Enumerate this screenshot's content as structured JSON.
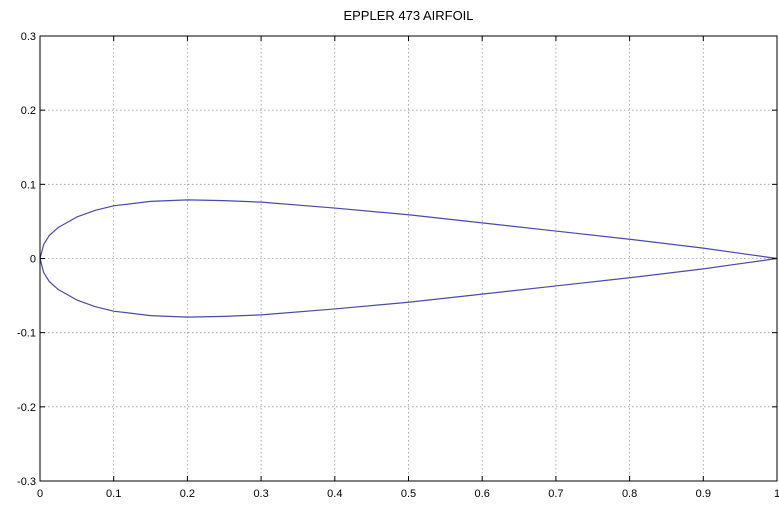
{
  "chart_data": {
    "type": "line",
    "title": "EPPLER 473 AIRFOIL",
    "xlabel": "",
    "ylabel": "",
    "xlim": [
      0,
      1
    ],
    "ylim": [
      -0.3,
      0.3
    ],
    "grid": true,
    "x_ticks": [
      "0",
      "0.1",
      "0.2",
      "0.3",
      "0.4",
      "0.5",
      "0.6",
      "0.7",
      "0.8",
      "0.9",
      "1"
    ],
    "y_ticks": [
      "0.3",
      "0.2",
      "0.1",
      "0",
      "-0.1",
      "-0.2",
      "-0.3"
    ],
    "series": [
      {
        "color": "#4a4aa8",
        "x": [
          1.0,
          0.95,
          0.9,
          0.8,
          0.7,
          0.6,
          0.5,
          0.4,
          0.3,
          0.25,
          0.2,
          0.15,
          0.1,
          0.075,
          0.05,
          0.025,
          0.0125,
          0.005,
          0.0,
          0.005,
          0.0125,
          0.025,
          0.05,
          0.075,
          0.1,
          0.15,
          0.2,
          0.25,
          0.3,
          0.4,
          0.5,
          0.6,
          0.7,
          0.8,
          0.9,
          0.95,
          1.0
        ],
        "y": [
          0.0,
          0.007,
          0.014,
          0.026,
          0.037,
          0.048,
          0.059,
          0.068,
          0.076,
          0.078,
          0.079,
          0.077,
          0.071,
          0.065,
          0.056,
          0.042,
          0.031,
          0.019,
          0.0,
          -0.019,
          -0.031,
          -0.042,
          -0.056,
          -0.065,
          -0.071,
          -0.077,
          -0.079,
          -0.078,
          -0.076,
          -0.068,
          -0.059,
          -0.048,
          -0.037,
          -0.026,
          -0.014,
          -0.007,
          0.0
        ]
      }
    ]
  }
}
